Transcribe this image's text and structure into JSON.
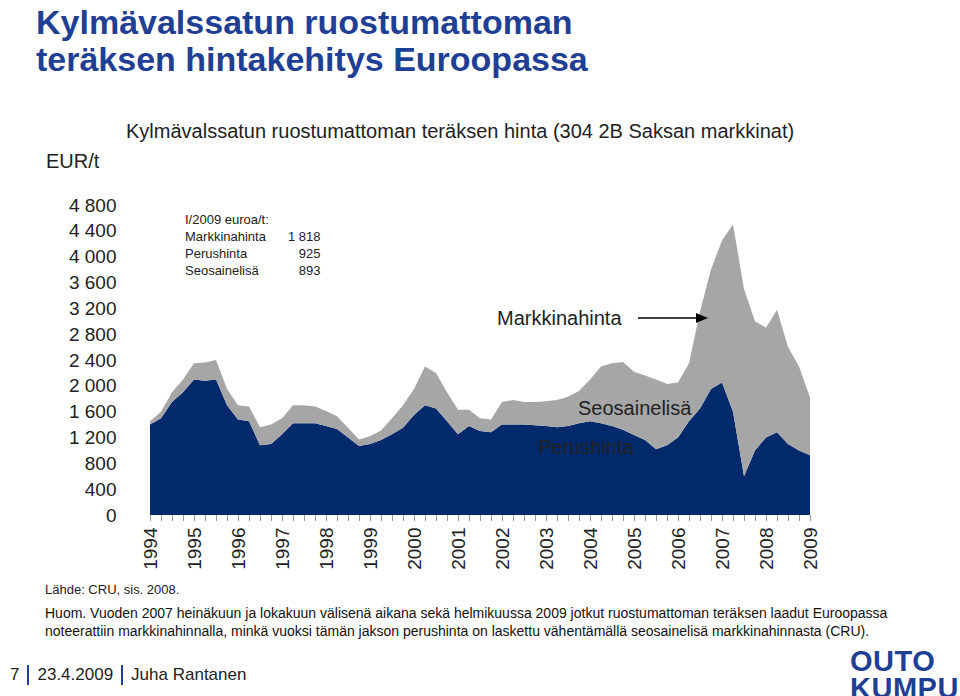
{
  "chart_data": {
    "type": "area",
    "stacked": true,
    "title": "Kylmävalssatun ruostumattoman teräksen hintakehitys Euroopassa",
    "subtitle": "Kylmävalssatun ruostumattoman teräksen hinta (304 2B Saksan markkinat)",
    "y_label": "EUR/t",
    "categories": [
      "1994",
      null,
      null,
      null,
      "1995",
      null,
      null,
      null,
      "1996",
      null,
      null,
      null,
      "1997",
      null,
      null,
      null,
      "1998",
      null,
      null,
      null,
      "1999",
      null,
      null,
      null,
      "2000",
      null,
      null,
      null,
      "2001",
      null,
      null,
      null,
      "2002",
      null,
      null,
      null,
      "2003",
      null,
      null,
      null,
      "2004",
      null,
      null,
      null,
      "2005",
      null,
      null,
      null,
      "2006",
      null,
      null,
      null,
      "2007",
      null,
      null,
      null,
      "2008",
      null,
      null,
      null,
      "2009"
    ],
    "series": [
      {
        "name": "Perushinta",
        "color": "#002a6c",
        "values": [
          1400,
          1500,
          1750,
          1900,
          2100,
          2080,
          2100,
          1700,
          1480,
          1450,
          1080,
          1100,
          1250,
          1420,
          1420,
          1420,
          1380,
          1330,
          1200,
          1070,
          1100,
          1160,
          1250,
          1350,
          1550,
          1700,
          1650,
          1450,
          1250,
          1380,
          1300,
          1280,
          1400,
          1400,
          1400,
          1390,
          1380,
          1360,
          1380,
          1420,
          1450,
          1420,
          1380,
          1320,
          1240,
          1160,
          1020,
          1080,
          1200,
          1450,
          1650,
          1950,
          2050,
          1600,
          600,
          1000,
          1200,
          1280,
          1100,
          1000,
          925
        ]
      },
      {
        "name": "Seosainelisä",
        "color": "#a6a6a6",
        "values": [
          50,
          100,
          150,
          200,
          250,
          280,
          300,
          250,
          220,
          230,
          280,
          300,
          250,
          280,
          280,
          260,
          230,
          200,
          150,
          100,
          120,
          150,
          250,
          350,
          400,
          600,
          550,
          450,
          380,
          250,
          200,
          200,
          350,
          380,
          350,
          360,
          380,
          420,
          450,
          500,
          650,
          880,
          970,
          1050,
          980,
          1000,
          1080,
          950,
          850,
          900,
          1500,
          1850,
          2200,
          2900,
          2900,
          2000,
          1700,
          1900,
          1500,
          1300,
          893
        ]
      }
    ],
    "ylim": [
      0,
      4800
    ],
    "yticks": [
      0,
      400,
      800,
      {
        "value": 1200,
        "label": "1 200"
      },
      {
        "value": 1600,
        "label": "1 600"
      },
      {
        "value": 2000,
        "label": "2 000"
      },
      {
        "value": 2400,
        "label": "2 400"
      },
      {
        "value": 2800,
        "label": "2 800"
      },
      {
        "value": 3200,
        "label": "3 200"
      },
      {
        "value": 3600,
        "label": "3 600"
      },
      {
        "value": 4000,
        "label": "4 000"
      },
      {
        "value": 4400,
        "label": "4 400"
      },
      {
        "value": 4800,
        "label": "4 800"
      }
    ],
    "grid": false,
    "annotations": [
      {
        "text": "Markkinahinta"
      }
    ],
    "inset": {
      "title": "I/2009 euroa/t:",
      "rows": [
        {
          "label": "Markkinahinta",
          "value": 1818,
          "value_label": "1 818"
        },
        {
          "label": "Perushinta",
          "value": 925,
          "value_label": "925"
        },
        {
          "label": "Seosainelisä",
          "value": 893,
          "value_label": "893"
        }
      ]
    },
    "source": "Lähde: CRU, sis. 2008.",
    "note": "Huom. Vuoden 2007 heinäkuun ja lokakuun välisenä aikana sekä helmikuussa 2009 jotkut ruostumattoman teräksen laadut Euroopassa noteerattiin markkinahinnalla, minkä vuoksi tämän jakson perushinta on laskettu vähentämällä seosainelisä markkinahinnasta (CRU).",
    "footer": {
      "page": "7",
      "date": "23.4.2009",
      "author": "Juha Rantanen",
      "logo": [
        "OUTO",
        "KUMPU"
      ]
    }
  }
}
